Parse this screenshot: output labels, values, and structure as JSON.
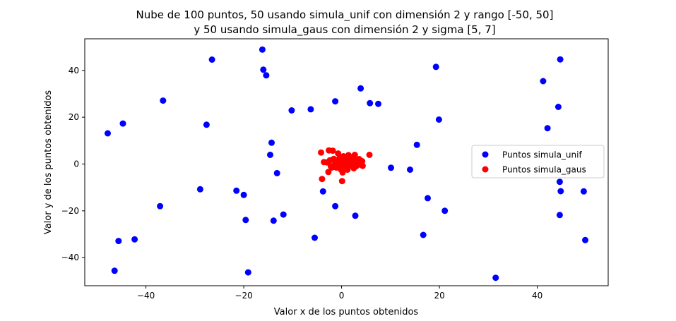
{
  "chart_data": {
    "type": "scatter",
    "title_line1": "Nube de 100 puntos, 50 usando simula_unif con dimensión 2 y rango [-50, 50]",
    "title_line2": "y 50 usando simula_gaus con dimensión 2 y sigma [5, 7]",
    "xlabel": "Valor x de los puntos obtenidos",
    "ylabel": "Valor y de los puntos obtenidos",
    "xlim": [
      -52.5,
      54.5
    ],
    "ylim": [
      -52,
      53.5
    ],
    "xticks": [
      -40,
      -20,
      0,
      20,
      40
    ],
    "yticks": [
      -40,
      -20,
      0,
      20,
      40
    ],
    "xtick_labels": [
      "−40",
      "−20",
      "0",
      "20",
      "40"
    ],
    "ytick_labels": [
      "−40",
      "−20",
      "0",
      "20",
      "40"
    ],
    "grid": false,
    "legend_position": "center-right",
    "series": [
      {
        "name": "Puntos simula_unif",
        "color": "#0000ff",
        "points": [
          [
            -47.8,
            13.1
          ],
          [
            -44.7,
            17.3
          ],
          [
            -45.6,
            -32.9
          ],
          [
            -46.4,
            -45.6
          ],
          [
            -42.3,
            -32.2
          ],
          [
            -36.5,
            27.1
          ],
          [
            -37.1,
            -18.0
          ],
          [
            -26.5,
            44.6
          ],
          [
            -27.6,
            16.8
          ],
          [
            -28.9,
            -10.8
          ],
          [
            -21.5,
            -11.4
          ],
          [
            -20.0,
            -13.2
          ],
          [
            -19.6,
            -23.9
          ],
          [
            -19.1,
            -46.3
          ],
          [
            -16.2,
            48.9
          ],
          [
            -16.0,
            40.3
          ],
          [
            -15.4,
            37.9
          ],
          [
            -14.3,
            9.1
          ],
          [
            -14.6,
            3.9
          ],
          [
            -13.9,
            -24.2
          ],
          [
            -13.2,
            -3.9
          ],
          [
            -11.9,
            -21.6
          ],
          [
            -10.2,
            22.9
          ],
          [
            -6.3,
            23.4
          ],
          [
            -5.5,
            -31.5
          ],
          [
            -3.8,
            -11.7
          ],
          [
            -1.3,
            26.8
          ],
          [
            -1.3,
            -18.0
          ],
          [
            2.8,
            -22.1
          ],
          [
            3.9,
            32.3
          ],
          [
            5.8,
            26.0
          ],
          [
            7.5,
            25.7
          ],
          [
            10.1,
            -1.6
          ],
          [
            14.0,
            -2.4
          ],
          [
            15.4,
            8.2
          ],
          [
            16.7,
            -30.3
          ],
          [
            17.6,
            -14.6
          ],
          [
            19.3,
            41.5
          ],
          [
            19.9,
            19.0
          ],
          [
            21.1,
            -20.0
          ],
          [
            31.5,
            -48.6
          ],
          [
            41.2,
            35.4
          ],
          [
            42.1,
            15.3
          ],
          [
            44.3,
            24.4
          ],
          [
            44.7,
            44.7
          ],
          [
            44.6,
            -7.6
          ],
          [
            44.8,
            -11.6
          ],
          [
            44.6,
            -21.8
          ],
          [
            49.5,
            -11.7
          ],
          [
            49.8,
            -32.5
          ]
        ]
      },
      {
        "name": "Puntos simula_gaus",
        "color": "#ff0000",
        "points": [
          [
            -4.2,
            4.9
          ],
          [
            -4.0,
            -6.4
          ],
          [
            -3.6,
            0.8
          ],
          [
            -3.0,
            0.7
          ],
          [
            -2.7,
            -3.4
          ],
          [
            -2.6,
            5.8
          ],
          [
            -2.2,
            -0.9
          ],
          [
            -1.8,
            5.7
          ],
          [
            -1.6,
            2.2
          ],
          [
            -1.3,
            0.4
          ],
          [
            -1.1,
            -1.5
          ],
          [
            -0.9,
            1.6
          ],
          [
            -0.7,
            4.5
          ],
          [
            -0.5,
            -0.3
          ],
          [
            -0.3,
            2.7
          ],
          [
            -0.2,
            -2.2
          ],
          [
            0.0,
            0.9
          ],
          [
            0.2,
            -3.6
          ],
          [
            0.1,
            -7.3
          ],
          [
            0.4,
            3.3
          ],
          [
            0.6,
            -1.1
          ],
          [
            0.8,
            1.9
          ],
          [
            1.1,
            0.2
          ],
          [
            1.2,
            -2.4
          ],
          [
            1.4,
            3.8
          ],
          [
            1.6,
            0.9
          ],
          [
            1.8,
            -0.6
          ],
          [
            2.1,
            2.5
          ],
          [
            2.3,
            0.6
          ],
          [
            2.5,
            -1.8
          ],
          [
            2.7,
            3.9
          ],
          [
            2.9,
            1.4
          ],
          [
            3.0,
            -0.9
          ],
          [
            3.3,
            0.3
          ],
          [
            3.6,
            2.1
          ],
          [
            3.9,
            -0.3
          ],
          [
            4.2,
            1.2
          ],
          [
            4.3,
            -0.8
          ],
          [
            5.7,
            3.9
          ],
          [
            -2.0,
            -1.5
          ],
          [
            0.8,
            -0.2
          ],
          [
            1.5,
            1.1
          ],
          [
            -0.4,
            -0.9
          ],
          [
            2.2,
            -0.4
          ],
          [
            0.5,
            2.4
          ],
          [
            -1.0,
            0.9
          ],
          [
            3.5,
            0.8
          ],
          [
            -2.4,
            1.6
          ],
          [
            1.9,
            3.0
          ],
          [
            0.3,
            1.3
          ]
        ]
      }
    ]
  }
}
